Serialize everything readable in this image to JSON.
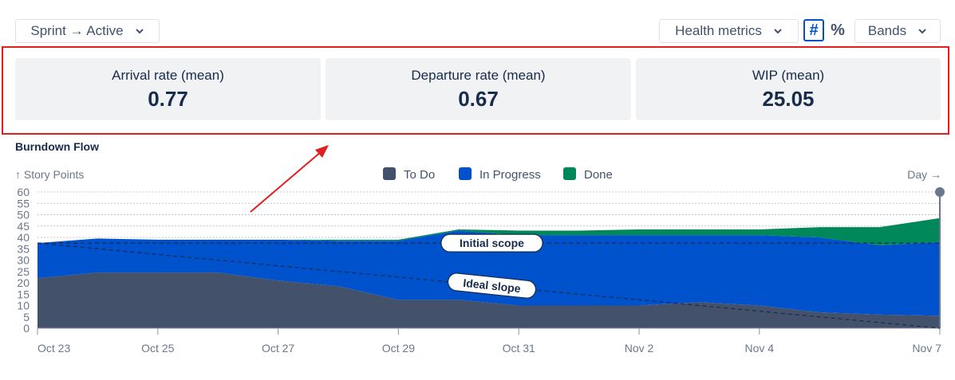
{
  "toolbar": {
    "sprint_dropdown": "Sprint → Active",
    "health_dropdown": "Health metrics",
    "hash_toggle": "#",
    "percent_toggle": "%",
    "bands_dropdown": "Bands"
  },
  "metrics": [
    {
      "label": "Arrival rate (mean)",
      "value": "0.77"
    },
    {
      "label": "Departure rate (mean)",
      "value": "0.67"
    },
    {
      "label": "WIP (mean)",
      "value": "25.05"
    }
  ],
  "colors": {
    "todo": "#44516b",
    "in_progress": "#0052cc",
    "done": "#00875a",
    "highlight": "#e02020"
  },
  "chart_data": {
    "type": "area",
    "title": "Burndown Flow",
    "ylabel": "↑ Story Points",
    "xlabel": "Day →",
    "ylim": [
      0,
      60
    ],
    "yticks": [
      0,
      5,
      10,
      15,
      20,
      25,
      30,
      35,
      40,
      45,
      50,
      55,
      60
    ],
    "xlim": [
      0,
      15
    ],
    "xticks": [
      {
        "x": 0,
        "label": "Oct 23"
      },
      {
        "x": 2,
        "label": "Oct 25"
      },
      {
        "x": 4,
        "label": "Oct 27"
      },
      {
        "x": 6,
        "label": "Oct 29"
      },
      {
        "x": 8,
        "label": "Oct 31"
      },
      {
        "x": 10,
        "label": "Nov 2"
      },
      {
        "x": 12,
        "label": "Nov 4"
      },
      {
        "x": 15,
        "label": "Nov 7"
      }
    ],
    "legend_position": "top-center",
    "grid": true,
    "stacked": true,
    "x": [
      0,
      1,
      2,
      3,
      4,
      5,
      6,
      7,
      8,
      9,
      10,
      11,
      12,
      13,
      14,
      15
    ],
    "series": [
      {
        "name": "To Do",
        "color": "#44516b",
        "values": [
          22,
          24.5,
          24.5,
          24.5,
          21,
          18.5,
          12.5,
          12.5,
          10,
          10,
          10,
          11.5,
          10,
          7,
          6,
          5.5
        ]
      },
      {
        "name": "In Progress",
        "color": "#0052cc",
        "values": [
          15.5,
          15,
          14.5,
          14.5,
          18,
          20,
          26,
          30.5,
          31,
          31,
          31,
          29.5,
          31,
          33,
          30.5,
          32.5
        ]
      },
      {
        "name": "Done",
        "color": "#00875a",
        "values": [
          0,
          0,
          0,
          0,
          0,
          0.5,
          0.5,
          0.5,
          2,
          2,
          2.5,
          2.5,
          2.5,
          4.5,
          8,
          10.5
        ]
      }
    ],
    "reference_lines": [
      {
        "label": "Initial scope",
        "from": [
          0,
          37.5
        ],
        "to": [
          15,
          37.5
        ],
        "label_at": 7.5
      },
      {
        "label": "Ideal slope",
        "from": [
          0,
          37.5
        ],
        "to": [
          15,
          0
        ],
        "label_at": 7.5
      }
    ]
  }
}
